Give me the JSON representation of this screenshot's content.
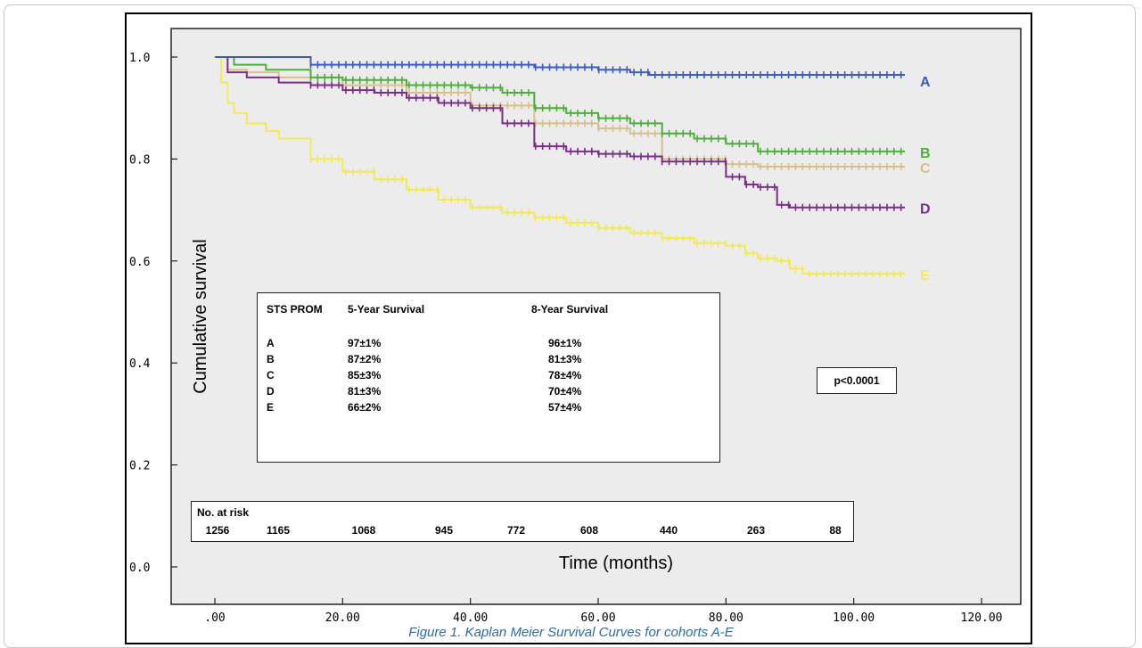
{
  "caption": "Figure 1. Kaplan Meier Survival Curves for cohorts A-E",
  "chart_data": {
    "type": "line",
    "title": "",
    "xlabel": "Time (months)",
    "ylabel": "Cumulative survival",
    "xlim": [
      0,
      120
    ],
    "ylim": [
      0,
      1.0
    ],
    "x_ticks": [
      ".00",
      "20.00",
      "40.00",
      "60.00",
      "80.00",
      "100.00",
      "120.00"
    ],
    "x_tick_values": [
      0,
      20,
      40,
      60,
      80,
      100,
      120
    ],
    "y_ticks": [
      "0.0",
      "0.2",
      "0.4",
      "0.6",
      "0.8",
      "1.0"
    ],
    "y_tick_values": [
      0,
      0.2,
      0.4,
      0.6,
      0.8,
      1.0
    ],
    "grid": false,
    "plot_background": "#ececec",
    "series": [
      {
        "name": "A",
        "color": "#3b5cbc",
        "x": [
          0,
          15,
          20,
          40,
          50,
          60,
          65,
          68,
          75,
          85,
          95,
          108
        ],
        "y": [
          1.0,
          0.985,
          0.985,
          0.985,
          0.98,
          0.975,
          0.97,
          0.965,
          0.965,
          0.965,
          0.965,
          0.965
        ]
      },
      {
        "name": "B",
        "color": "#4caf3c",
        "x": [
          0,
          3,
          8,
          15,
          20,
          30,
          40,
          45,
          50,
          55,
          60,
          65,
          70,
          75,
          80,
          85,
          90,
          100,
          108
        ],
        "y": [
          1.0,
          0.985,
          0.975,
          0.96,
          0.955,
          0.945,
          0.94,
          0.93,
          0.9,
          0.89,
          0.88,
          0.87,
          0.85,
          0.84,
          0.83,
          0.815,
          0.815,
          0.815,
          0.815
        ]
      },
      {
        "name": "C",
        "color": "#d6c08e",
        "x": [
          0,
          2,
          5,
          10,
          20,
          30,
          40,
          50,
          60,
          65,
          70,
          75,
          80,
          85,
          90,
          95,
          100,
          108
        ],
        "y": [
          1.0,
          0.975,
          0.97,
          0.96,
          0.945,
          0.93,
          0.905,
          0.87,
          0.86,
          0.85,
          0.8,
          0.8,
          0.79,
          0.785,
          0.785,
          0.785,
          0.785,
          0.785
        ]
      },
      {
        "name": "D",
        "color": "#7a2e88",
        "x": [
          0,
          2,
          5,
          10,
          15,
          20,
          25,
          30,
          35,
          40,
          45,
          50,
          55,
          60,
          65,
          70,
          75,
          80,
          83,
          85,
          88,
          90,
          95,
          100,
          108
        ],
        "y": [
          1.0,
          0.97,
          0.96,
          0.95,
          0.945,
          0.935,
          0.93,
          0.92,
          0.91,
          0.9,
          0.87,
          0.825,
          0.815,
          0.81,
          0.805,
          0.795,
          0.795,
          0.765,
          0.75,
          0.745,
          0.71,
          0.705,
          0.705,
          0.705,
          0.705
        ]
      },
      {
        "name": "E",
        "color": "#f2ea5a",
        "x": [
          0,
          1,
          2,
          3,
          5,
          8,
          10,
          15,
          20,
          25,
          30,
          35,
          40,
          45,
          50,
          55,
          60,
          65,
          70,
          75,
          80,
          83,
          85,
          88,
          90,
          92,
          95,
          100,
          108
        ],
        "y": [
          1.0,
          0.95,
          0.91,
          0.89,
          0.87,
          0.855,
          0.84,
          0.8,
          0.775,
          0.76,
          0.74,
          0.72,
          0.705,
          0.695,
          0.685,
          0.675,
          0.665,
          0.655,
          0.645,
          0.635,
          0.63,
          0.615,
          0.605,
          0.6,
          0.585,
          0.575,
          0.575,
          0.575,
          0.575
        ]
      }
    ]
  },
  "stats_table": {
    "headers": [
      "STS PROM",
      "5-Year Survival",
      "8-Year Survival"
    ],
    "rows": [
      [
        "A",
        "97±1%",
        "96±1%"
      ],
      [
        "B",
        "87±2%",
        "81±3%"
      ],
      [
        "C",
        "85±3%",
        "78±4%"
      ],
      [
        "D",
        "81±3%",
        "70±4%"
      ],
      [
        "E",
        "66±2%",
        "57±4%"
      ]
    ]
  },
  "p_value": "p<0.0001",
  "at_risk": {
    "title": "No. at risk",
    "values": [
      "1256",
      "1165",
      "1068",
      "945",
      "772",
      "608",
      "440",
      "263",
      "88"
    ]
  }
}
